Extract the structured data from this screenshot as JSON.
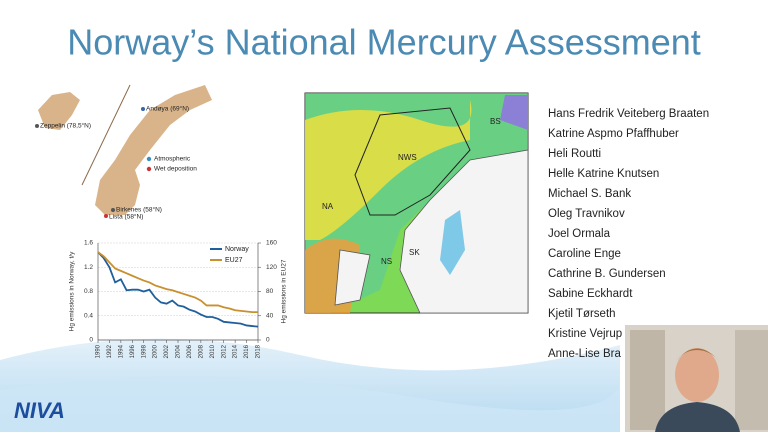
{
  "slide": {
    "title": "Norway’s National Mercury Assessment",
    "names": [
      "Hans Fredrik Veiteberg Braaten",
      "Katrine Aspmo Pfaffhuber",
      "Heli Routti",
      "Helle Katrine Knutsen",
      "Michael S. Bank",
      "Oleg Travnikov",
      "Joel Ormala",
      "Caroline Enge",
      "Cathrine B. Gundersen",
      "Sabine Eckhardt",
      "Kjetil Tørseth",
      "Kristine Vejrup",
      "Anne-Lise Bra"
    ],
    "station_map": {
      "stations": [
        "Zeppelin (78,5°N)",
        "Andøya (69°N)",
        "Birkenes (58°N)",
        "Lista (58°N)"
      ],
      "legend": [
        "Atmospheric",
        "Wet deposition"
      ]
    },
    "sea_map": {
      "regions": [
        "BS",
        "NWS",
        "NA",
        "NS",
        "SK"
      ]
    },
    "logo": "NIVA"
  },
  "chart_data": {
    "type": "line",
    "ylabel": "Hg emissions in Norway, t/y",
    "y2label": "Hg emissions in EU27",
    "x": [
      1990,
      1991,
      1992,
      1993,
      1994,
      1995,
      1996,
      1997,
      1998,
      1999,
      2000,
      2001,
      2002,
      2003,
      2004,
      2005,
      2006,
      2007,
      2008,
      2009,
      2010,
      2011,
      2012,
      2013,
      2014,
      2015,
      2016,
      2017,
      2018
    ],
    "series": [
      {
        "name": "Norway",
        "color": "#1f5f9e",
        "values": [
          1.45,
          1.35,
          1.2,
          0.95,
          1.0,
          0.82,
          0.83,
          0.83,
          0.8,
          0.83,
          0.7,
          0.62,
          0.6,
          0.65,
          0.57,
          0.55,
          0.5,
          0.47,
          0.42,
          0.38,
          0.38,
          0.35,
          0.3,
          0.29,
          0.28,
          0.27,
          0.24,
          0.23,
          0.22
        ]
      },
      {
        "name": "EU27",
        "color": "#c8902f",
        "axis": "y2",
        "values": [
          145,
          138,
          128,
          118,
          114,
          110,
          106,
          102,
          98,
          95,
          90,
          87,
          84,
          82,
          79,
          76,
          73,
          70,
          65,
          57,
          57,
          57,
          54,
          52,
          49,
          48,
          47,
          46,
          46
        ]
      }
    ],
    "xlim": [
      1990,
      2018
    ],
    "xticks": [
      1990,
      1992,
      1994,
      1996,
      1998,
      2000,
      2002,
      2004,
      2006,
      2008,
      2010,
      2012,
      2014,
      2016,
      2018
    ],
    "ylim": [
      0,
      1.6
    ],
    "yticks": [
      0,
      0.4,
      0.8,
      1.2,
      1.6
    ],
    "y2lim": [
      0,
      160
    ],
    "y2ticks": [
      0,
      40,
      80,
      120,
      160
    ],
    "grid": true
  }
}
